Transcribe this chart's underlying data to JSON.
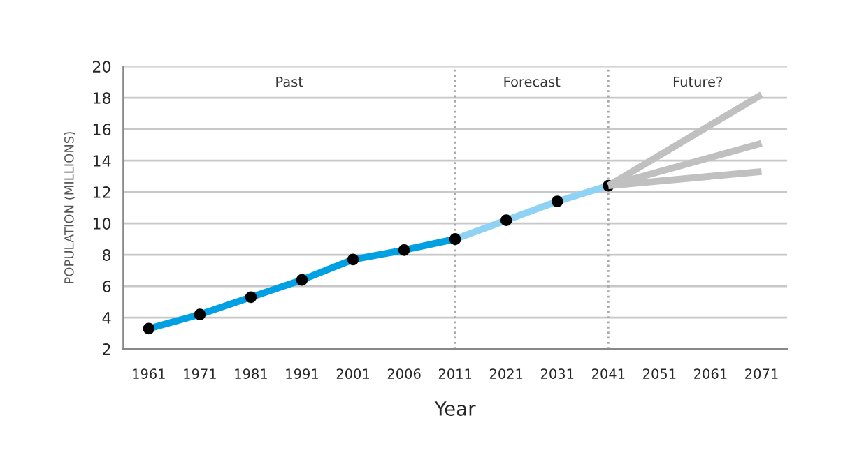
{
  "chart_data": {
    "type": "line",
    "categories": [
      "1961",
      "1971",
      "1981",
      "1991",
      "2001",
      "2006",
      "2011",
      "2021",
      "2031",
      "2041",
      "2051",
      "2061",
      "2071"
    ],
    "xlabel": "Year",
    "ylabel": "POPULATION (MILLIONS)",
    "ylim": [
      2,
      20
    ],
    "yticks": [
      2,
      4,
      6,
      8,
      10,
      12,
      14,
      16,
      18,
      20
    ],
    "grid": "y",
    "series": [
      {
        "color": "#00a0e3",
        "marker": "circle",
        "values": [
          3.3,
          4.2,
          5.3,
          6.4,
          7.7,
          8.3,
          9.0,
          null,
          null,
          null,
          null,
          null,
          null
        ]
      },
      {
        "color": "#8fd3f4",
        "marker": "circle",
        "values": [
          null,
          null,
          null,
          null,
          null,
          null,
          9.0,
          10.2,
          11.4,
          12.4,
          null,
          null,
          null
        ]
      },
      {
        "color": "#c0c0c0",
        "marker": "none",
        "values": [
          null,
          null,
          null,
          null,
          null,
          null,
          null,
          null,
          null,
          12.4,
          null,
          null,
          18.2
        ]
      },
      {
        "color": "#c0c0c0",
        "marker": "none",
        "values": [
          null,
          null,
          null,
          null,
          null,
          null,
          null,
          null,
          null,
          12.4,
          null,
          null,
          15.1
        ]
      },
      {
        "color": "#c0c0c0",
        "marker": "none",
        "values": [
          null,
          null,
          null,
          null,
          null,
          null,
          null,
          null,
          null,
          12.4,
          null,
          null,
          13.3
        ]
      }
    ],
    "ref_lines": [
      {
        "axis": "x",
        "value": "2011",
        "color": "#aaaaaa",
        "line_style": "dotted"
      },
      {
        "axis": "x",
        "value": "2041",
        "color": "#aaaaaa",
        "line_style": "dotted"
      }
    ],
    "annotations": [
      "Past",
      "Forecast",
      "Future?"
    ]
  }
}
